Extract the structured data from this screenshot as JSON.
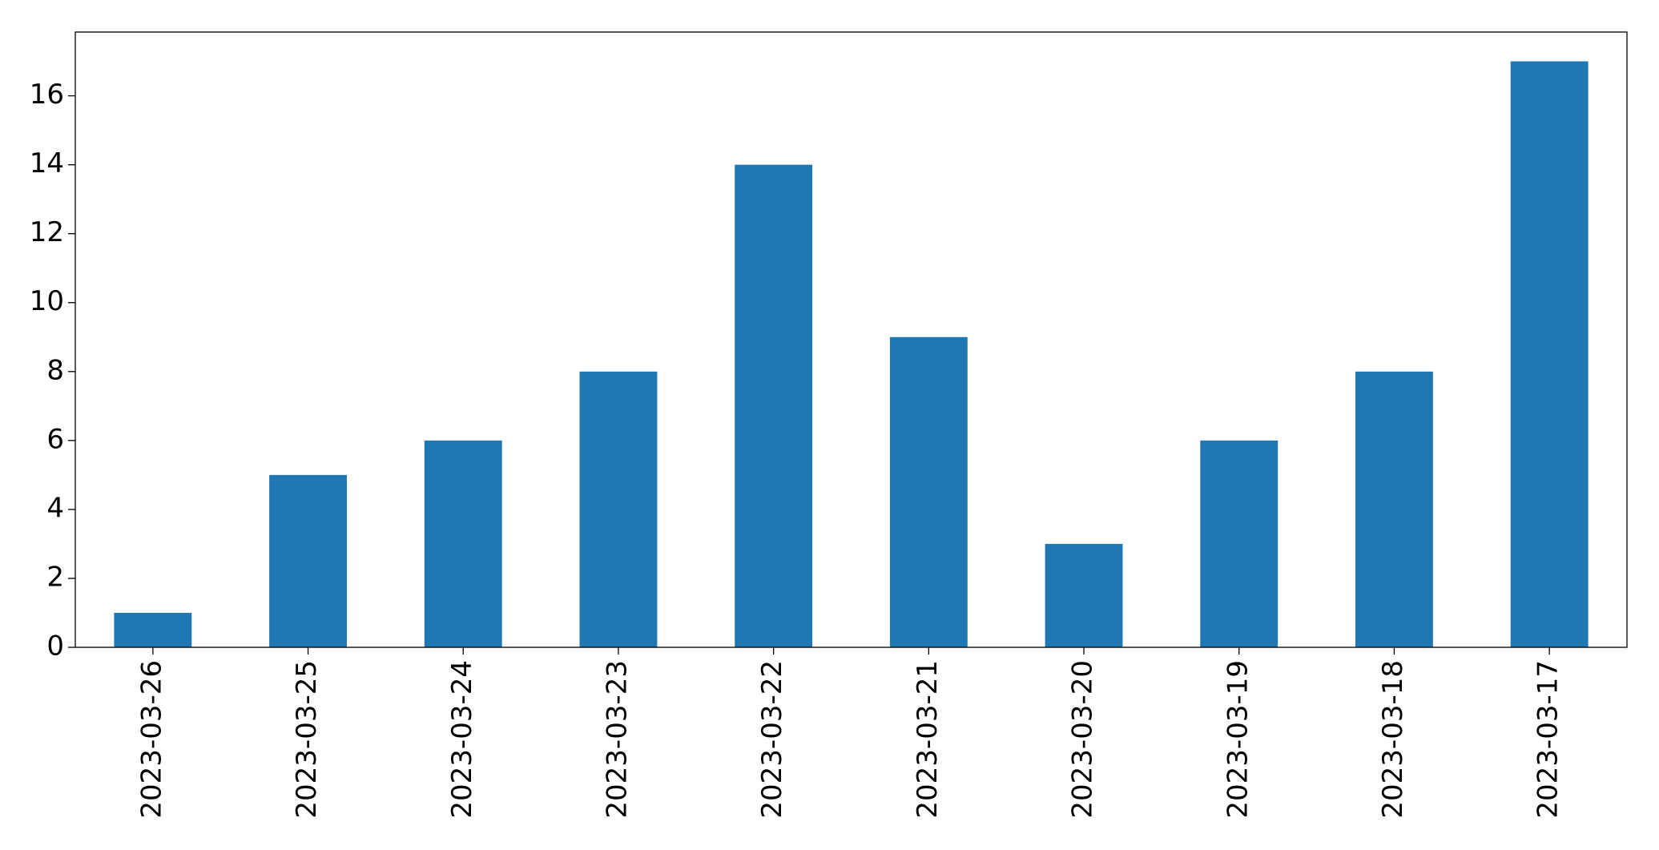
{
  "chart_data": {
    "type": "bar",
    "categories": [
      "2023-03-26",
      "2023-03-25",
      "2023-03-24",
      "2023-03-23",
      "2023-03-22",
      "2023-03-21",
      "2023-03-20",
      "2023-03-19",
      "2023-03-18",
      "2023-03-17"
    ],
    "values": [
      1,
      5,
      6,
      8,
      14,
      9,
      3,
      6,
      8,
      17
    ],
    "color": "#1f77b4",
    "ylim": [
      0,
      17.85
    ],
    "yticks": [
      0,
      2,
      4,
      6,
      8,
      10,
      12,
      14,
      16
    ],
    "grid": false
  }
}
